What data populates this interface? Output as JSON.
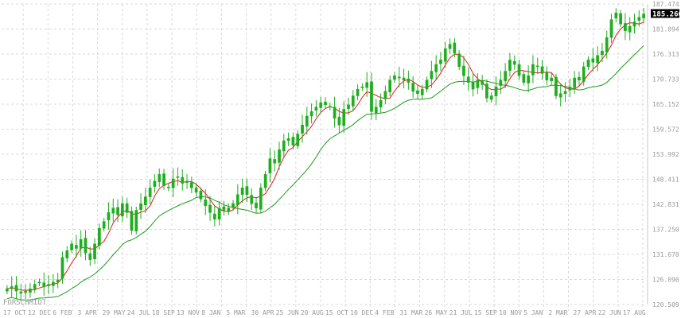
{
  "watermark": "FORSCHMIDT",
  "colors": {
    "background": "#ffffff",
    "grid": "#d8d8d8",
    "candle": "#1fae1f",
    "ma_fast": "#e01b1b",
    "ma_slow": "#1c9a1c",
    "axis_text": "#9a9a9a",
    "price_label_bg": "#000000",
    "price_label_text": "#ffffff"
  },
  "chart_data": {
    "type": "candlestick",
    "title": "",
    "xlabel": "",
    "ylabel": "",
    "ylim": [
      120.509,
      187.474
    ],
    "grid": true,
    "y_ticks": [
      "187.474",
      "181.894",
      "176.313",
      "170.733",
      "165.152",
      "159.572",
      "153.992",
      "148.411",
      "142.831",
      "137.250",
      "131.670",
      "126.090",
      "120.509"
    ],
    "x_ticks": [
      "17 OCT",
      "12 DEC",
      "6 FEB",
      "3 APR",
      "29 MAY",
      "24 JUL",
      "18 SEP",
      "13 NOV",
      "8 JAN",
      "5 MAR",
      "30 APR",
      "25 JUN",
      "20 AUG",
      "15 OCT",
      "10 DEC",
      "4 FEB",
      "31 MAR",
      "26 MAY",
      "21 JUL",
      "15 SEP",
      "10 NOV",
      "5 JAN",
      "2 MAR",
      "27 APR",
      "22 JUN",
      "17 AUG"
    ],
    "last_price": "185.260",
    "close_series": [
      124.0,
      124.5,
      123.5,
      123.0,
      123.5,
      124.0,
      125.0,
      125.5,
      124.5,
      125.0,
      125.5,
      126.0,
      131.0,
      132.5,
      134.0,
      133.0,
      135.0,
      132.0,
      130.5,
      134.0,
      137.5,
      139.0,
      141.0,
      142.0,
      140.5,
      143.0,
      141.0,
      137.0,
      141.5,
      143.0,
      144.5,
      146.5,
      148.0,
      149.5,
      147.0,
      146.5,
      148.5,
      149.0,
      147.5,
      148.0,
      146.5,
      145.5,
      144.0,
      142.5,
      141.0,
      139.5,
      142.0,
      141.5,
      142.0,
      143.0,
      145.0,
      146.5,
      145.0,
      143.0,
      142.0,
      146.5,
      149.5,
      153.0,
      152.0,
      155.0,
      157.0,
      157.5,
      156.0,
      158.5,
      160.5,
      162.5,
      163.5,
      164.5,
      165.5,
      165.0,
      164.5,
      162.0,
      160.5,
      164.0,
      165.0,
      167.0,
      168.5,
      169.0,
      170.0,
      163.5,
      164.5,
      166.0,
      168.0,
      170.5,
      171.5,
      171.0,
      170.5,
      170.0,
      168.0,
      167.5,
      168.5,
      170.5,
      172.5,
      174.0,
      175.0,
      177.5,
      178.5,
      176.5,
      173.5,
      171.5,
      170.0,
      168.5,
      170.5,
      169.5,
      166.5,
      167.0,
      169.0,
      170.5,
      172.5,
      175.0,
      174.0,
      171.5,
      170.0,
      171.5,
      174.0,
      173.5,
      172.0,
      170.5,
      171.0,
      167.0,
      167.5,
      168.0,
      169.0,
      171.0,
      170.5,
      173.5,
      175.0,
      174.5,
      176.0,
      177.0,
      180.0,
      184.0,
      185.5,
      183.0,
      181.5,
      182.5,
      183.5,
      184.5,
      185.26
    ]
  }
}
